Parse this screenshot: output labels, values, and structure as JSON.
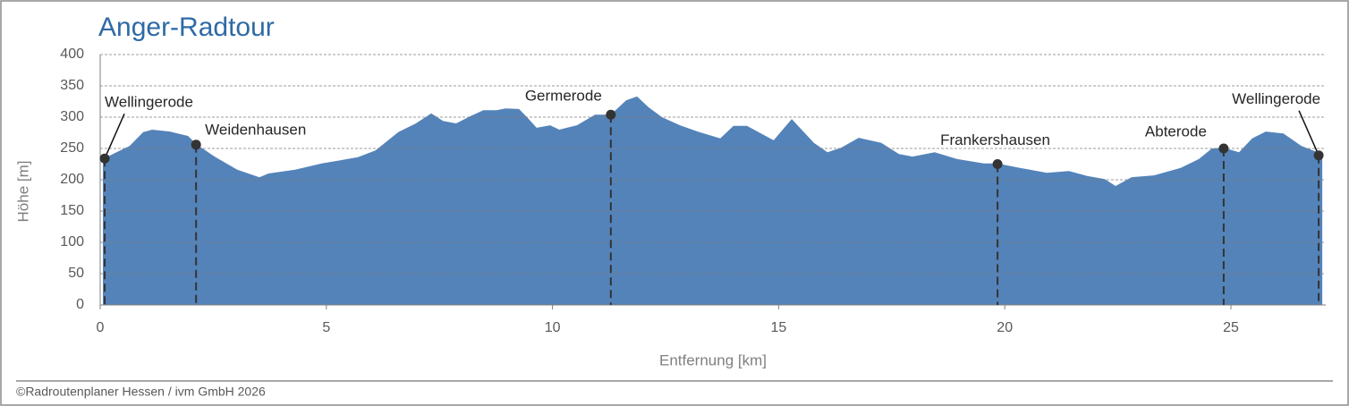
{
  "chart_data": {
    "type": "area",
    "title": "Anger-Radtour",
    "x_label": "Entfernung [km]",
    "y_label": "Höhe [m]",
    "footer": "©Radroutenplaner Hessen / ivm GmbH 2026",
    "xlim": [
      0,
      27.1
    ],
    "ylim": [
      0,
      400
    ],
    "xticks": [
      0,
      5,
      10,
      15,
      20,
      25
    ],
    "yticks": [
      0,
      50,
      100,
      150,
      200,
      250,
      300,
      350,
      400
    ],
    "grid": true,
    "x": [
      0.06,
      0.36,
      0.65,
      0.95,
      1.15,
      1.54,
      1.94,
      2.14,
      2.53,
      3.03,
      3.52,
      3.72,
      4.31,
      4.9,
      5.7,
      6.09,
      6.59,
      6.98,
      7.32,
      7.58,
      7.87,
      8.17,
      8.47,
      8.76,
      8.96,
      9.26,
      9.45,
      9.65,
      9.95,
      10.15,
      10.54,
      10.94,
      11.29,
      11.63,
      11.87,
      12.12,
      12.42,
      12.82,
      13.21,
      13.71,
      14.0,
      14.3,
      14.89,
      15.29,
      15.78,
      16.08,
      16.38,
      16.77,
      17.27,
      17.66,
      17.96,
      18.45,
      18.95,
      19.54,
      19.84,
      20.33,
      20.93,
      21.42,
      21.82,
      22.21,
      22.45,
      22.8,
      23.3,
      23.89,
      24.29,
      24.58,
      24.84,
      25.18,
      25.47,
      25.77,
      26.16,
      26.56,
      27.02
    ],
    "series": [
      {
        "name": "Höhe",
        "color": "#5483b9",
        "values": [
          233,
          244,
          254,
          276,
          280,
          277,
          270,
          256,
          237,
          216,
          204,
          210,
          216,
          226,
          236,
          247,
          276,
          290,
          306,
          294,
          290,
          301,
          311,
          311,
          314,
          313,
          299,
          283,
          287,
          280,
          287,
          304,
          304,
          327,
          333,
          316,
          300,
          287,
          277,
          266,
          286,
          286,
          263,
          297,
          259,
          244,
          251,
          267,
          259,
          241,
          237,
          244,
          233,
          226,
          226,
          219,
          211,
          214,
          206,
          201,
          190,
          204,
          207,
          219,
          233,
          250,
          251,
          244,
          266,
          277,
          274,
          254,
          241
        ]
      }
    ],
    "waypoints": [
      {
        "name": "Wellingerode",
        "distance": 0.1,
        "elevation": 234
      },
      {
        "name": "Weidenhausen",
        "distance": 2.12,
        "elevation": 256
      },
      {
        "name": "Germerode",
        "distance": 11.29,
        "elevation": 304
      },
      {
        "name": "Frankershausen",
        "distance": 19.84,
        "elevation": 225
      },
      {
        "name": "Abterode",
        "distance": 24.84,
        "elevation": 250
      },
      {
        "name": "Wellingerode",
        "distance": 26.94,
        "elevation": 239
      }
    ]
  }
}
